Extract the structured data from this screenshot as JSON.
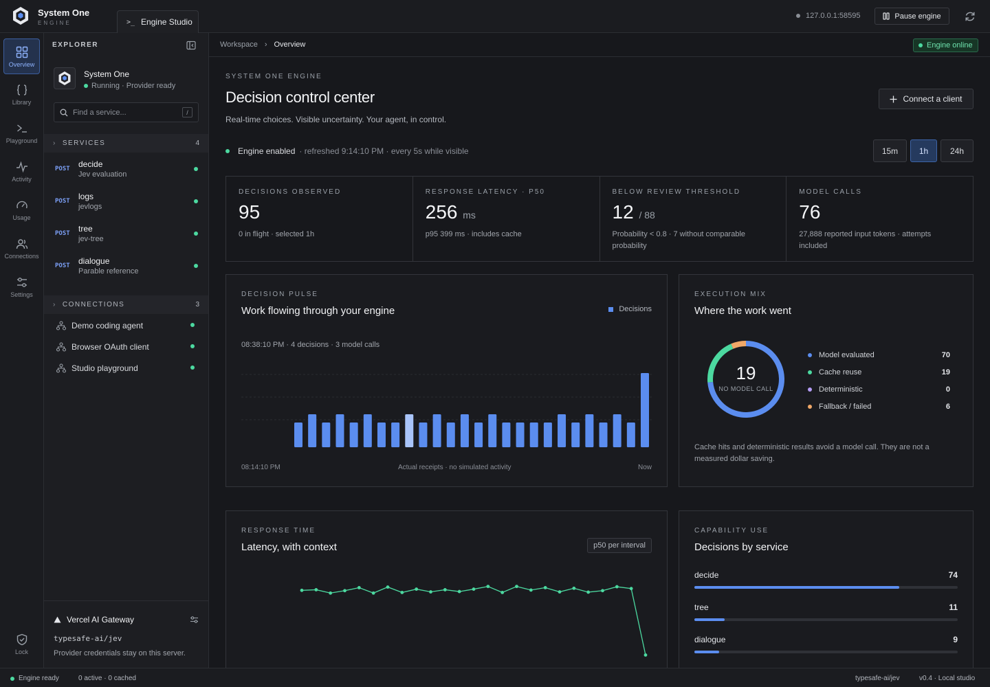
{
  "brand": {
    "name": "System One",
    "subtitle": "ENGINE"
  },
  "tab": {
    "label": "Engine Studio"
  },
  "topbar": {
    "host": "127.0.0.1:58595",
    "pause_label": "Pause engine"
  },
  "rail": [
    {
      "label": "Overview",
      "icon": "grid-icon",
      "active": true
    },
    {
      "label": "Library",
      "icon": "braces-icon"
    },
    {
      "label": "Playground",
      "icon": "terminal-icon"
    },
    {
      "label": "Activity",
      "icon": "pulse-icon"
    },
    {
      "label": "Usage",
      "icon": "gauge-icon"
    },
    {
      "label": "Connections",
      "icon": "users-icon"
    },
    {
      "label": "Settings",
      "icon": "sliders-icon"
    }
  ],
  "rail_lock": {
    "label": "Lock",
    "icon": "shield-icon"
  },
  "explorer": {
    "title": "EXPLORER",
    "project": {
      "name": "System One",
      "status": "Running · Provider ready"
    },
    "search": {
      "placeholder": "Find a service...",
      "shortcut": "/"
    },
    "services_header": {
      "label": "SERVICES",
      "count": "4"
    },
    "services": [
      {
        "method": "POST",
        "name": "decide",
        "desc": "Jev evaluation"
      },
      {
        "method": "POST",
        "name": "logs",
        "desc": "jevlogs"
      },
      {
        "method": "POST",
        "name": "tree",
        "desc": "jev-tree"
      },
      {
        "method": "POST",
        "name": "dialogue",
        "desc": "Parable reference"
      }
    ],
    "connections_header": {
      "label": "CONNECTIONS",
      "count": "3"
    },
    "connections": [
      {
        "name": "Demo coding agent"
      },
      {
        "name": "Browser OAuth client"
      },
      {
        "name": "Studio playground"
      }
    ],
    "gateway": {
      "name": "Vercel AI Gateway",
      "repo": "typesafe-ai/jev",
      "note": "Provider credentials stay on this server."
    }
  },
  "breadcrumb": {
    "root": "Workspace",
    "current": "Overview",
    "status": "Engine online"
  },
  "header": {
    "eyebrow": "SYSTEM ONE ENGINE",
    "title": "Decision control center",
    "subtitle": "Real-time choices. Visible uncertainty. Your agent, in control.",
    "connect_label": "Connect a client",
    "engine_status": "Engine enabled",
    "refresh_info": "· refreshed 9:14:10 PM · every 5s while visible",
    "ranges": [
      {
        "label": "15m"
      },
      {
        "label": "1h",
        "selected": true
      },
      {
        "label": "24h"
      }
    ]
  },
  "stats": [
    {
      "label": "DECISIONS OBSERVED",
      "value": "95",
      "unit": "",
      "note": "0 in flight · selected 1h"
    },
    {
      "label": "RESPONSE LATENCY · P50",
      "value": "256",
      "unit": "ms",
      "note": "p95 399 ms · includes cache"
    },
    {
      "label": "BELOW REVIEW THRESHOLD",
      "value": "12",
      "unit": "/ 88",
      "note": "Probability < 0.8 · 7 without comparable probability"
    },
    {
      "label": "MODEL CALLS",
      "value": "76",
      "unit": "",
      "note": "27,888 reported input tokens · attempts included"
    }
  ],
  "pulse": {
    "eyebrow": "DECISION PULSE",
    "title": "Work flowing through your engine",
    "legend": "Decisions",
    "selection": "08:38:10 PM · 4 decisions · 3 model calls",
    "start": "08:14:10 PM",
    "center_note": "Actual receipts · no simulated activity",
    "end": "Now"
  },
  "mix": {
    "eyebrow": "EXECUTION MIX",
    "title": "Where the work went",
    "center_value": "19",
    "center_label": "NO MODEL CALL",
    "items": [
      {
        "label": "Model evaluated",
        "value": "70",
        "color": "#5b8def"
      },
      {
        "label": "Cache reuse",
        "value": "19",
        "color": "#4cd9a0"
      },
      {
        "label": "Deterministic",
        "value": "0",
        "color": "#b49cf5"
      },
      {
        "label": "Fallback / failed",
        "value": "6",
        "color": "#f0a868"
      }
    ],
    "note": "Cache hits and deterministic results avoid a model call. They are not a measured dollar saving."
  },
  "latency": {
    "eyebrow": "RESPONSE TIME",
    "title": "Latency, with context",
    "badge": "p50 per interval"
  },
  "capability": {
    "eyebrow": "CAPABILITY USE",
    "title": "Decisions by service",
    "max": 95,
    "items": [
      {
        "name": "decide",
        "value": 74
      },
      {
        "name": "tree",
        "value": 11
      },
      {
        "name": "dialogue",
        "value": 9
      }
    ]
  },
  "statusbar": {
    "engine": "Engine ready",
    "activity": "0 active · 0 cached",
    "repo": "typesafe-ai/jev",
    "version": "v0.4 · Local studio"
  },
  "chart_data": [
    {
      "type": "bar",
      "title": "Work flowing through your engine",
      "series": [
        {
          "name": "Decisions",
          "values": [
            3,
            4,
            3,
            4,
            3,
            4,
            3,
            3,
            4,
            3,
            4,
            3,
            4,
            3,
            4,
            3,
            3,
            3,
            3,
            4,
            3,
            4,
            3,
            4,
            3,
            9
          ]
        }
      ],
      "highlight_index": 8,
      "ylim": [
        0,
        9
      ],
      "xlabel": "",
      "ylabel": ""
    },
    {
      "type": "pie",
      "title": "Where the work went",
      "categories": [
        "Model evaluated",
        "Cache reuse",
        "Deterministic",
        "Fallback / failed"
      ],
      "values": [
        70,
        19,
        0,
        6
      ]
    },
    {
      "type": "line",
      "title": "Latency, with context",
      "values": [
        255,
        257,
        246,
        254,
        264,
        246,
        266,
        248,
        259,
        250,
        257,
        251,
        259,
        268,
        248,
        268,
        256,
        264,
        250,
        262,
        249,
        254,
        267,
        261,
        40
      ],
      "ylim": [
        0,
        290
      ]
    }
  ]
}
